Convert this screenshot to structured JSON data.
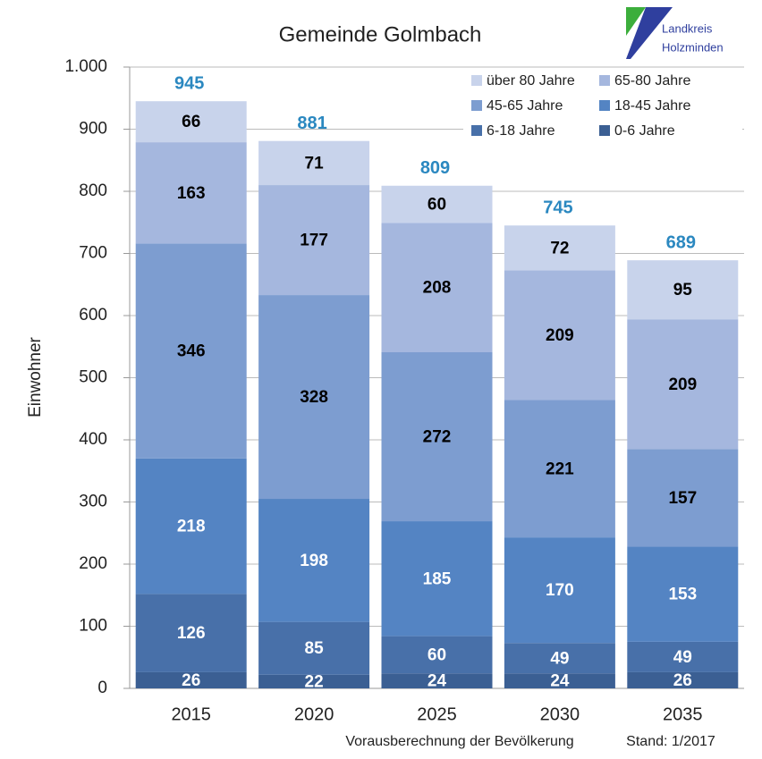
{
  "chart_data": {
    "type": "stacked_bar",
    "title": "Gemeinde Golmbach",
    "ylabel": "Einwohner",
    "categories": [
      "2015",
      "2020",
      "2025",
      "2030",
      "2035"
    ],
    "series": [
      {
        "name": "0-6 Jahre",
        "color": "#3b5f93",
        "label_color": "#ffffff",
        "values": [
          26,
          22,
          24,
          24,
          26
        ]
      },
      {
        "name": "6-18 Jahre",
        "color": "#4870a9",
        "label_color": "#ffffff",
        "values": [
          126,
          85,
          60,
          49,
          49
        ]
      },
      {
        "name": "18-45 Jahre",
        "color": "#5484c3",
        "label_color": "#ffffff",
        "values": [
          218,
          198,
          185,
          170,
          153
        ]
      },
      {
        "name": "45-65 Jahre",
        "color": "#7d9dd0",
        "label_color": "#000000",
        "values": [
          346,
          328,
          272,
          221,
          157
        ]
      },
      {
        "name": "65-80 Jahre",
        "color": "#a5b7de",
        "label_color": "#000000",
        "values": [
          163,
          177,
          208,
          209,
          209
        ]
      },
      {
        "name": "über 80 Jahre",
        "color": "#c8d3eb",
        "label_color": "#000000",
        "values": [
          66,
          71,
          60,
          72,
          95
        ]
      }
    ],
    "totals": [
      945,
      881,
      809,
      745,
      689
    ],
    "totals_color": "#2b88c0",
    "ylim": [
      0,
      1000
    ],
    "yticks": [
      0,
      100,
      200,
      300,
      400,
      500,
      600,
      700,
      800,
      900,
      {
        "value": 1000,
        "label": "1.000"
      }
    ],
    "grid": true,
    "legend_order": [
      5,
      4,
      3,
      2,
      1,
      0
    ],
    "footer": "Vorausberechnung der Bevölkerung",
    "stand": "Stand: 1/2017",
    "logo": {
      "line1": "Landkreis",
      "line2": "Holzminden"
    }
  }
}
